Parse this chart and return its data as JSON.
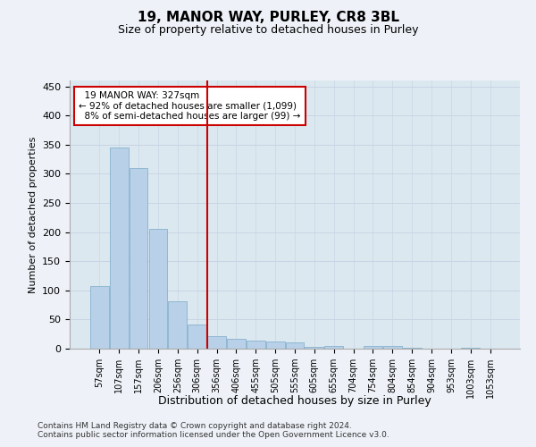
{
  "title": "19, MANOR WAY, PURLEY, CR8 3BL",
  "subtitle": "Size of property relative to detached houses in Purley",
  "xlabel": "Distribution of detached houses by size in Purley",
  "ylabel": "Number of detached properties",
  "property_label": "19 MANOR WAY: 327sqm",
  "pct_smaller": "92% of detached houses are smaller (1,099)",
  "pct_larger": "8% of semi-detached houses are larger (99)",
  "bar_color": "#b8d0e8",
  "bar_edge_color": "#7aaac8",
  "vline_color": "#cc0000",
  "annotation_box_color": "#ffffff",
  "annotation_box_edge": "#cc0000",
  "grid_color": "#c8d4e4",
  "bg_color": "#dce8f0",
  "fig_bg_color": "#eef2f8",
  "categories": [
    "57sqm",
    "107sqm",
    "157sqm",
    "206sqm",
    "256sqm",
    "306sqm",
    "356sqm",
    "406sqm",
    "455sqm",
    "505sqm",
    "555sqm",
    "605sqm",
    "655sqm",
    "704sqm",
    "754sqm",
    "804sqm",
    "854sqm",
    "904sqm",
    "953sqm",
    "1003sqm",
    "1053sqm"
  ],
  "values": [
    108,
    345,
    310,
    205,
    82,
    42,
    22,
    17,
    14,
    12,
    11,
    3,
    5,
    0,
    5,
    5,
    1,
    0,
    0,
    1,
    0
  ],
  "vline_position": 5.5,
  "ylim": [
    0,
    460
  ],
  "yticks": [
    0,
    50,
    100,
    150,
    200,
    250,
    300,
    350,
    400,
    450
  ],
  "footer1": "Contains HM Land Registry data © Crown copyright and database right 2024.",
  "footer2": "Contains public sector information licensed under the Open Government Licence v3.0."
}
